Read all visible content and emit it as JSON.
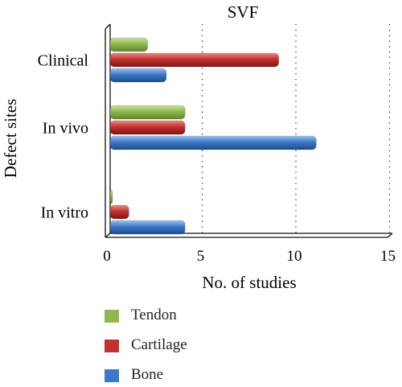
{
  "chart_data": {
    "type": "bar",
    "orientation": "horizontal",
    "title": "SVF",
    "xlabel": "No. of studies",
    "ylabel": "Defect sites",
    "categories": [
      "Clinical",
      "In vivo",
      "In vitro"
    ],
    "series": [
      {
        "name": "Tendon",
        "color": "#8fb84e",
        "values": [
          2,
          4,
          0
        ]
      },
      {
        "name": "Cartilage",
        "color": "#c0322e",
        "values": [
          9,
          4,
          1
        ]
      },
      {
        "name": "Bone",
        "color": "#3d78c6",
        "values": [
          3,
          11,
          4
        ]
      }
    ],
    "xlim": [
      0,
      15
    ],
    "xticks": [
      "0",
      "5",
      "10",
      "15"
    ],
    "grid": "vertical dotted",
    "legend_position": "bottom"
  }
}
